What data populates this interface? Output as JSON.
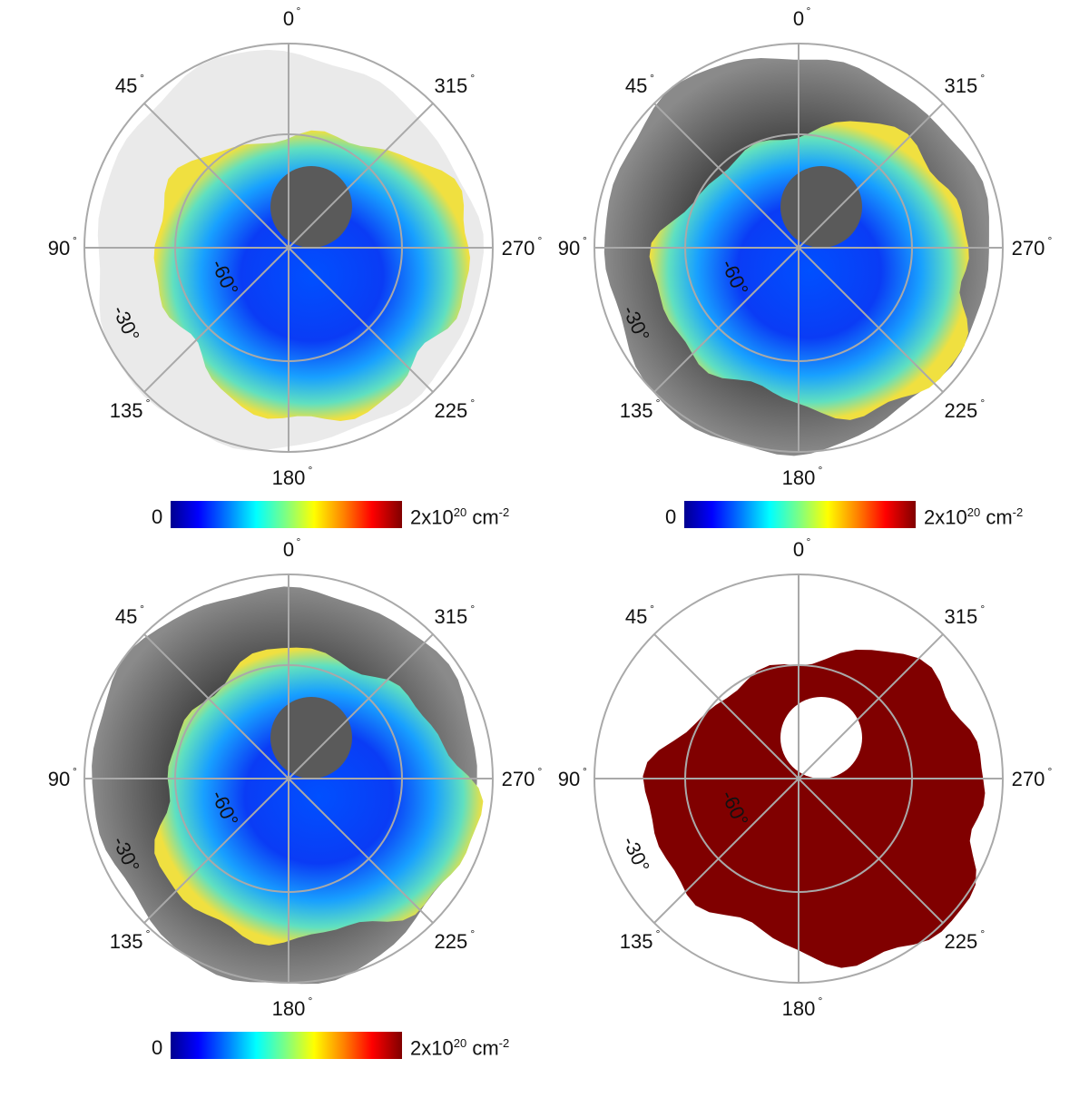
{
  "panels": [
    {
      "id": "top-left",
      "map": "column-density",
      "fill": "color"
    },
    {
      "id": "top-right",
      "map": "column-density",
      "fill": "color"
    },
    {
      "id": "bottom-left",
      "map": "column-density",
      "fill": "color"
    },
    {
      "id": "bottom-right",
      "map": "mask",
      "fill": "mask"
    }
  ],
  "azimuth_labels": [
    "0",
    "315",
    "270",
    "225",
    "180",
    "135",
    "90",
    "45"
  ],
  "latitude_labels": [
    "-60",
    "-30"
  ],
  "colorbar": {
    "min_label": "0",
    "max_base": "2x10",
    "max_exponent": "20",
    "unit_base": "cm",
    "unit_exponent": "-2"
  },
  "colors": {
    "mask": "#800000",
    "grid": "#a9a9a9",
    "gray_background": "#555555"
  }
}
